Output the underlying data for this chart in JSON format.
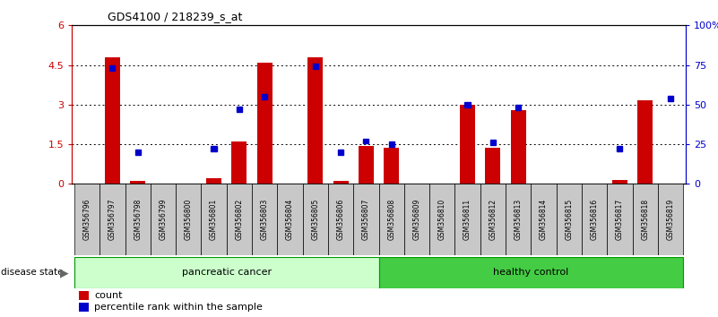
{
  "title": "GDS4100 / 218239_s_at",
  "samples": [
    "GSM356796",
    "GSM356797",
    "GSM356798",
    "GSM356799",
    "GSM356800",
    "GSM356801",
    "GSM356802",
    "GSM356803",
    "GSM356804",
    "GSM356805",
    "GSM356806",
    "GSM356807",
    "GSM356808",
    "GSM356809",
    "GSM356810",
    "GSM356811",
    "GSM356812",
    "GSM356813",
    "GSM356814",
    "GSM356815",
    "GSM356816",
    "GSM356817",
    "GSM356818",
    "GSM356819"
  ],
  "count": [
    0.0,
    4.8,
    0.1,
    0.0,
    0.0,
    0.2,
    1.6,
    4.6,
    0.0,
    4.8,
    0.1,
    1.45,
    1.35,
    0.0,
    0.0,
    3.0,
    1.35,
    2.8,
    0.0,
    0.0,
    0.0,
    0.15,
    3.15,
    0.0
  ],
  "percentile": [
    0,
    73,
    20,
    0,
    0,
    22,
    47,
    55,
    0,
    74,
    20,
    27,
    25,
    0,
    0,
    50,
    26,
    48,
    0,
    0,
    0,
    22,
    0,
    54
  ],
  "groups": [
    {
      "label": "pancreatic cancer",
      "start": 0,
      "end": 11,
      "color": "#CCFFCC",
      "edge": "#009900"
    },
    {
      "label": "healthy control",
      "start": 12,
      "end": 23,
      "color": "#44CC44",
      "edge": "#009900"
    }
  ],
  "ylim_left": [
    0,
    6
  ],
  "ylim_right": [
    0,
    100
  ],
  "yticks_left": [
    0,
    1.5,
    3.0,
    4.5,
    6
  ],
  "yticks_right": [
    0,
    25,
    50,
    75,
    100
  ],
  "ytick_labels_right": [
    "0",
    "25",
    "50",
    "75",
    "100%"
  ],
  "bar_color": "#CC0000",
  "dot_color": "#0000CC",
  "bg_color": "#FFFFFF",
  "disease_state_label": "disease state",
  "legend_count": "count",
  "legend_pct": "percentile rank within the sample"
}
